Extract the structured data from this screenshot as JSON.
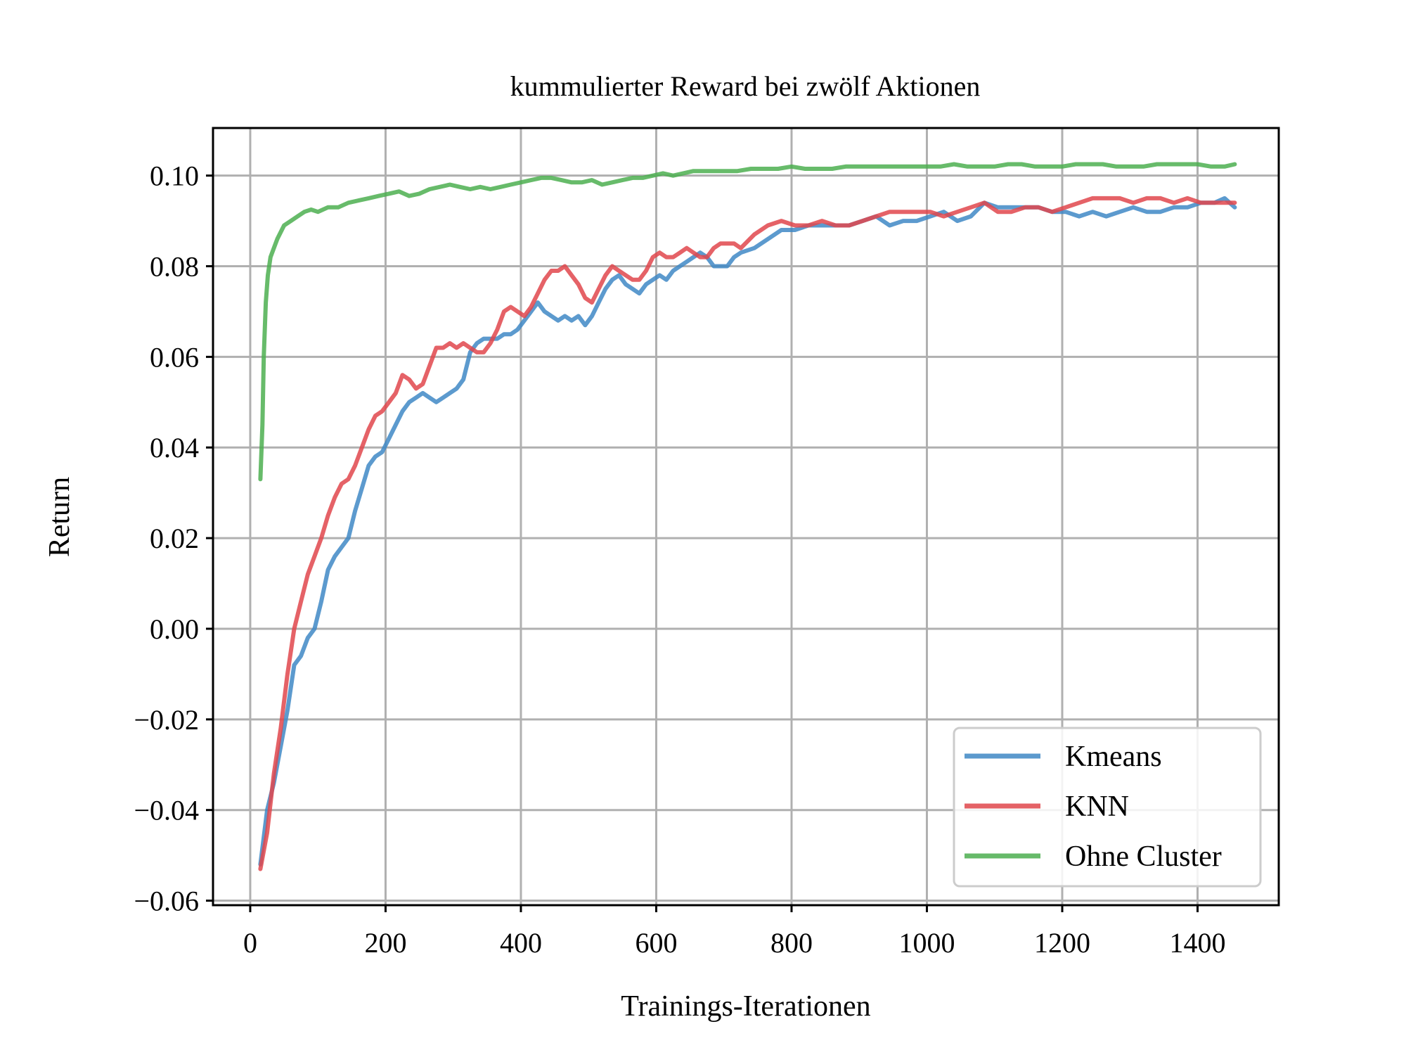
{
  "chart_data": {
    "type": "line",
    "title": "kummulierter Reward bei zwölf Aktionen",
    "xlabel": "Trainings-Iterationen",
    "ylabel": "Return",
    "xlim": [
      -55,
      1520
    ],
    "ylim": [
      -0.061,
      0.1105
    ],
    "xticks": [
      0,
      200,
      400,
      600,
      800,
      1000,
      1200,
      1400
    ],
    "xtick_labels": [
      "0",
      "200",
      "400",
      "600",
      "800",
      "1000",
      "1200",
      "1400"
    ],
    "yticks": [
      -0.06,
      -0.04,
      -0.02,
      0.0,
      0.02,
      0.04,
      0.06,
      0.08,
      0.1
    ],
    "ytick_labels": [
      "−0.06",
      "−0.04",
      "−0.02",
      "0.00",
      "0.02",
      "0.04",
      "0.06",
      "0.08",
      "0.10"
    ],
    "grid": true,
    "legend_position": "lower-right",
    "series": [
      {
        "name": "Kmeans",
        "color": "#3f88c5",
        "x": [
          15,
          25,
          35,
          45,
          55,
          65,
          75,
          85,
          95,
          105,
          115,
          125,
          135,
          145,
          155,
          165,
          175,
          185,
          195,
          205,
          215,
          225,
          235,
          245,
          255,
          265,
          275,
          285,
          295,
          305,
          315,
          325,
          335,
          345,
          355,
          365,
          375,
          385,
          395,
          405,
          415,
          425,
          435,
          445,
          455,
          465,
          475,
          485,
          495,
          505,
          515,
          525,
          535,
          545,
          555,
          565,
          575,
          585,
          595,
          605,
          615,
          625,
          635,
          645,
          655,
          665,
          675,
          685,
          695,
          705,
          715,
          725,
          745,
          765,
          785,
          805,
          825,
          845,
          865,
          885,
          905,
          925,
          945,
          965,
          985,
          1005,
          1025,
          1045,
          1065,
          1085,
          1105,
          1125,
          1145,
          1165,
          1185,
          1205,
          1225,
          1245,
          1265,
          1285,
          1305,
          1325,
          1345,
          1365,
          1385,
          1405,
          1425,
          1440,
          1455
        ],
        "y": [
          -0.052,
          -0.04,
          -0.034,
          -0.026,
          -0.018,
          -0.008,
          -0.006,
          -0.002,
          0.0,
          0.006,
          0.013,
          0.016,
          0.018,
          0.02,
          0.026,
          0.031,
          0.036,
          0.038,
          0.039,
          0.042,
          0.045,
          0.048,
          0.05,
          0.051,
          0.052,
          0.051,
          0.05,
          0.051,
          0.052,
          0.053,
          0.055,
          0.061,
          0.063,
          0.064,
          0.064,
          0.064,
          0.065,
          0.065,
          0.066,
          0.068,
          0.07,
          0.072,
          0.07,
          0.069,
          0.068,
          0.069,
          0.068,
          0.069,
          0.067,
          0.069,
          0.072,
          0.075,
          0.077,
          0.078,
          0.076,
          0.075,
          0.074,
          0.076,
          0.077,
          0.078,
          0.077,
          0.079,
          0.08,
          0.081,
          0.082,
          0.083,
          0.082,
          0.08,
          0.08,
          0.08,
          0.082,
          0.083,
          0.084,
          0.086,
          0.088,
          0.088,
          0.089,
          0.089,
          0.089,
          0.089,
          0.09,
          0.091,
          0.089,
          0.09,
          0.09,
          0.091,
          0.092,
          0.09,
          0.091,
          0.094,
          0.093,
          0.093,
          0.093,
          0.093,
          0.092,
          0.092,
          0.091,
          0.092,
          0.091,
          0.092,
          0.093,
          0.092,
          0.092,
          0.093,
          0.093,
          0.094,
          0.094,
          0.095,
          0.093
        ]
      },
      {
        "name": "KNN",
        "color": "#e0474c",
        "x": [
          15,
          25,
          35,
          45,
          55,
          65,
          75,
          85,
          95,
          105,
          115,
          125,
          135,
          145,
          155,
          165,
          175,
          185,
          195,
          205,
          215,
          225,
          235,
          245,
          255,
          265,
          275,
          285,
          295,
          305,
          315,
          325,
          335,
          345,
          355,
          365,
          375,
          385,
          395,
          405,
          415,
          425,
          435,
          445,
          455,
          465,
          475,
          485,
          495,
          505,
          515,
          525,
          535,
          545,
          555,
          565,
          575,
          585,
          595,
          605,
          615,
          625,
          635,
          645,
          655,
          665,
          675,
          685,
          695,
          705,
          715,
          725,
          745,
          765,
          785,
          805,
          825,
          845,
          865,
          885,
          905,
          925,
          945,
          965,
          985,
          1005,
          1025,
          1045,
          1065,
          1085,
          1105,
          1125,
          1145,
          1165,
          1185,
          1205,
          1225,
          1245,
          1265,
          1285,
          1305,
          1325,
          1345,
          1365,
          1385,
          1405,
          1425,
          1440,
          1455
        ],
        "y": [
          -0.053,
          -0.045,
          -0.032,
          -0.022,
          -0.01,
          0.0,
          0.006,
          0.012,
          0.016,
          0.02,
          0.025,
          0.029,
          0.032,
          0.033,
          0.036,
          0.04,
          0.044,
          0.047,
          0.048,
          0.05,
          0.052,
          0.056,
          0.055,
          0.053,
          0.054,
          0.058,
          0.062,
          0.062,
          0.063,
          0.062,
          0.063,
          0.062,
          0.061,
          0.061,
          0.063,
          0.066,
          0.07,
          0.071,
          0.07,
          0.069,
          0.071,
          0.074,
          0.077,
          0.079,
          0.079,
          0.08,
          0.078,
          0.076,
          0.073,
          0.072,
          0.075,
          0.078,
          0.08,
          0.079,
          0.078,
          0.077,
          0.077,
          0.079,
          0.082,
          0.083,
          0.082,
          0.082,
          0.083,
          0.084,
          0.083,
          0.082,
          0.082,
          0.084,
          0.085,
          0.085,
          0.085,
          0.084,
          0.087,
          0.089,
          0.09,
          0.089,
          0.089,
          0.09,
          0.089,
          0.089,
          0.09,
          0.091,
          0.092,
          0.092,
          0.092,
          0.092,
          0.091,
          0.092,
          0.093,
          0.094,
          0.092,
          0.092,
          0.093,
          0.093,
          0.092,
          0.093,
          0.094,
          0.095,
          0.095,
          0.095,
          0.094,
          0.095,
          0.095,
          0.094,
          0.095,
          0.094,
          0.094,
          0.094,
          0.094
        ]
      },
      {
        "name": "Ohne Cluster",
        "color": "#4caf50",
        "x": [
          15,
          18,
          20,
          23,
          26,
          30,
          35,
          40,
          50,
          60,
          70,
          80,
          90,
          100,
          115,
          130,
          145,
          160,
          175,
          190,
          205,
          220,
          235,
          250,
          265,
          280,
          295,
          310,
          325,
          340,
          355,
          370,
          385,
          400,
          415,
          430,
          445,
          460,
          475,
          490,
          505,
          520,
          535,
          550,
          565,
          580,
          595,
          610,
          625,
          640,
          655,
          670,
          685,
          700,
          720,
          740,
          760,
          780,
          800,
          820,
          840,
          860,
          880,
          900,
          920,
          940,
          960,
          980,
          1000,
          1020,
          1040,
          1060,
          1080,
          1100,
          1120,
          1140,
          1160,
          1180,
          1200,
          1220,
          1240,
          1260,
          1280,
          1300,
          1320,
          1340,
          1360,
          1380,
          1400,
          1420,
          1440,
          1455
        ],
        "y": [
          0.033,
          0.045,
          0.06,
          0.072,
          0.078,
          0.082,
          0.084,
          0.086,
          0.089,
          0.09,
          0.091,
          0.092,
          0.0925,
          0.092,
          0.093,
          0.093,
          0.094,
          0.0945,
          0.095,
          0.0955,
          0.096,
          0.0965,
          0.0955,
          0.096,
          0.097,
          0.0975,
          0.098,
          0.0975,
          0.097,
          0.0975,
          0.097,
          0.0975,
          0.098,
          0.0985,
          0.099,
          0.0995,
          0.0995,
          0.099,
          0.0985,
          0.0985,
          0.099,
          0.098,
          0.0985,
          0.099,
          0.0995,
          0.0995,
          0.1,
          0.1005,
          0.1,
          0.1005,
          0.101,
          0.101,
          0.101,
          0.101,
          0.101,
          0.1015,
          0.1015,
          0.1015,
          0.102,
          0.1015,
          0.1015,
          0.1015,
          0.102,
          0.102,
          0.102,
          0.102,
          0.102,
          0.102,
          0.102,
          0.102,
          0.1025,
          0.102,
          0.102,
          0.102,
          0.1025,
          0.1025,
          0.102,
          0.102,
          0.102,
          0.1025,
          0.1025,
          0.1025,
          0.102,
          0.102,
          0.102,
          0.1025,
          0.1025,
          0.1025,
          0.1025,
          0.102,
          0.102,
          0.1025
        ]
      }
    ]
  }
}
